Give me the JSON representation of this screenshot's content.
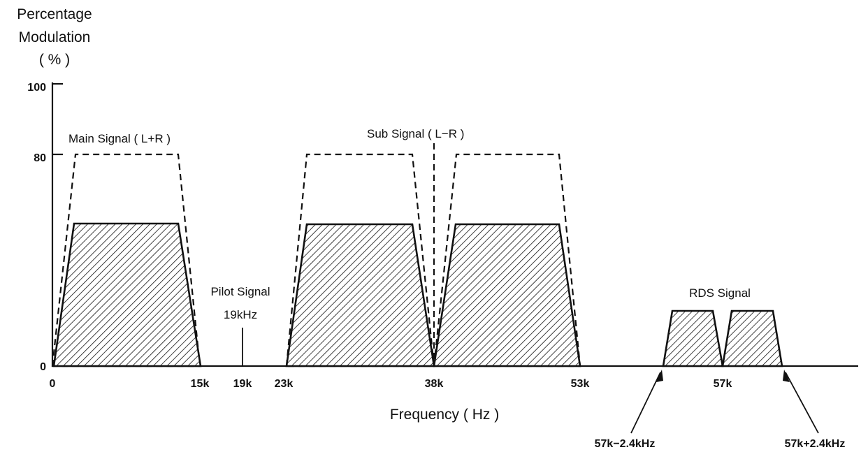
{
  "y_axis": {
    "title_lines": [
      "Percentage",
      "Modulation",
      "( % )"
    ],
    "ticks": [
      "100",
      "80",
      "0"
    ]
  },
  "x_axis": {
    "title": "Frequency ( Hz )",
    "ticks": [
      "0",
      "15k",
      "19k",
      "23k",
      "38k",
      "53k",
      "57k"
    ]
  },
  "labels": {
    "main_signal": "Main Signal ( L+R )",
    "sub_signal": "Sub Signal ( L−R )",
    "pilot_signal": "Pilot Signal",
    "pilot_freq": "19kHz",
    "rds_signal": "RDS Signal",
    "rds_lower": "57k−2.4kHz",
    "rds_upper": "57k+2.4kHz"
  },
  "chart_data": {
    "type": "area",
    "xlabel": "Frequency ( Hz )",
    "ylabel": "Percentage Modulation ( % )",
    "ylim": [
      0,
      100
    ],
    "pilot_frequency_hz": 19000,
    "bands": [
      {
        "group": "main",
        "start_hz": 0,
        "end_hz": 15000,
        "typical_percent": 50,
        "max_percent": 80
      },
      {
        "group": "sub_lower",
        "start_hz": 23000,
        "end_hz": 38000,
        "typical_percent": 50,
        "max_percent": 80
      },
      {
        "group": "sub_upper",
        "start_hz": 38000,
        "end_hz": 53000,
        "typical_percent": 50,
        "max_percent": 80
      },
      {
        "group": "rds_lower",
        "start_hz": 54600,
        "end_hz": 57000,
        "typical_percent": 19
      },
      {
        "group": "rds_upper",
        "start_hz": 57000,
        "end_hz": 59400,
        "typical_percent": 19
      }
    ]
  }
}
